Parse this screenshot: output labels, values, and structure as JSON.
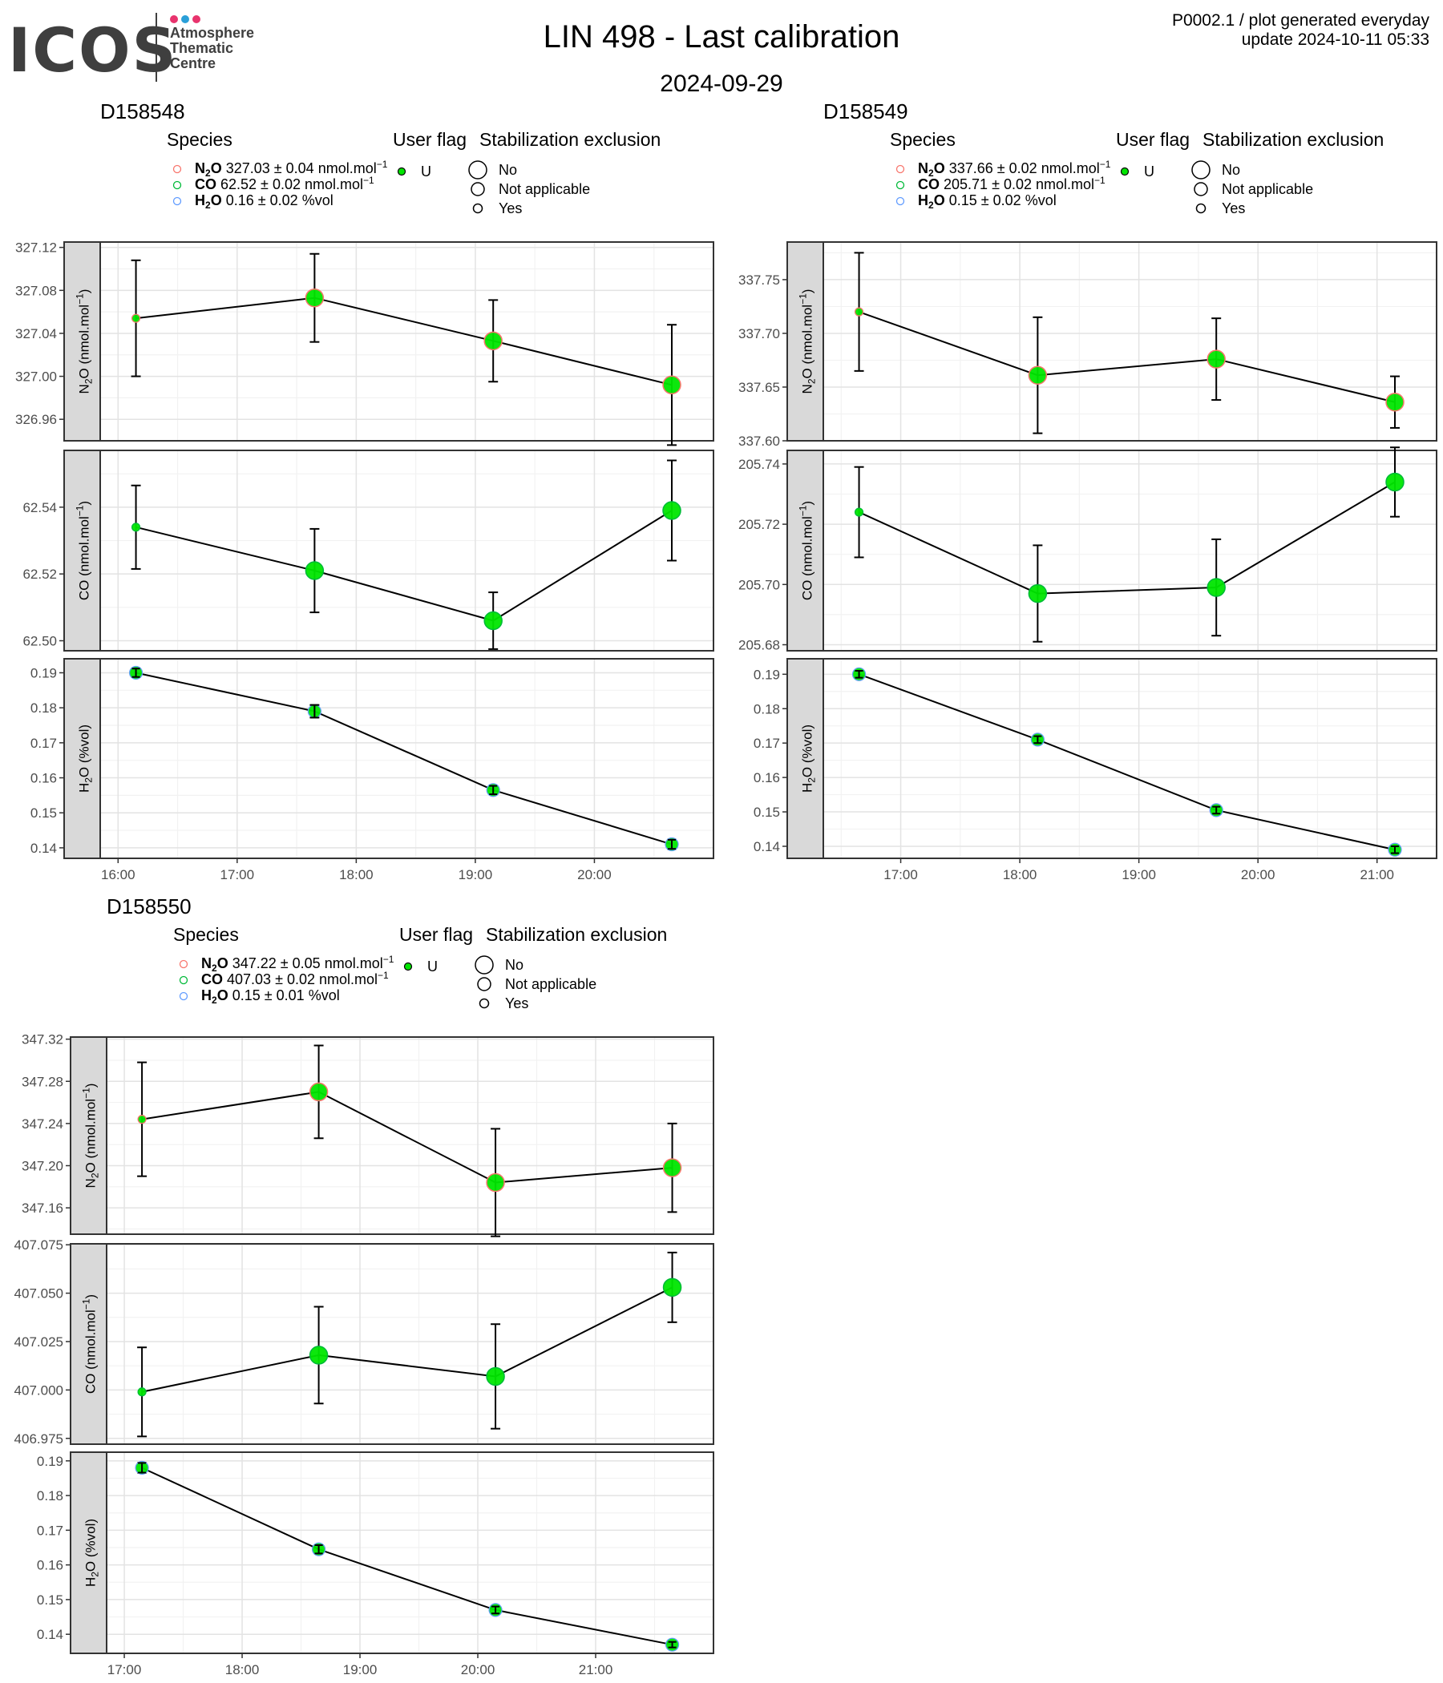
{
  "header": {
    "logo_text": "ICOS",
    "logo_lines": [
      "Atmosphere",
      "Thematic",
      "Centre"
    ],
    "logo_colors": [
      "#e8336d",
      "#2a9fd8",
      "#e8336d"
    ],
    "title": "LIN 498 - Last calibration",
    "date": "2024-09-29",
    "corner_line1": "P0002.1 / plot generated everyday",
    "corner_line2": "update  2024-10-11 05:33"
  },
  "legend_titles": {
    "species": "Species",
    "flag": "User flag",
    "stab": "Stabilization exclusion"
  },
  "legend_flag_value": "U",
  "legend_stab_values": [
    "No",
    "Not applicable",
    "Yes"
  ],
  "species_colors": {
    "N2O": "#f8766d",
    "CO": "#00ba38",
    "H2O": "#619cff"
  },
  "point_color": "#00e600",
  "chart_data": [
    {
      "type": "line",
      "title": "D158548",
      "legend": [
        {
          "name": "N2O",
          "value": "327.03",
          "sd": "0.04",
          "unit": "nmol.mol",
          "exp": "−1"
        },
        {
          "name": "CO",
          "value": "62.52",
          "sd": "0.02",
          "unit": "nmol.mol",
          "exp": "−1"
        },
        {
          "name": "H2O",
          "value": "0.16",
          "sd": "0.02",
          "unit": "%vol",
          "exp": ""
        }
      ],
      "x": [
        "16:09",
        "17:39",
        "19:09",
        "20:39"
      ],
      "x_ticks": [
        "16:00",
        "17:00",
        "18:00",
        "19:00",
        "20:00"
      ],
      "xlim": [
        "15:51",
        "21:00"
      ],
      "panels": [
        {
          "species": "N2O",
          "ylabel_main": "N",
          "ylabel_sub": "2",
          "ylabel_rest": "O (nmol.mol",
          "ylabel_exp": "−1",
          "ylabel_end": ")",
          "ylim": [
            326.94,
            327.125
          ],
          "ticks": [
            "327.12",
            "327.08",
            "327.04",
            "327.00",
            "326.96"
          ],
          "values": [
            327.054,
            327.073,
            327.033,
            326.992
          ],
          "errors": [
            0.054,
            0.041,
            0.038,
            0.056
          ],
          "sizes": [
            "small",
            "large",
            "large",
            "large"
          ]
        },
        {
          "species": "CO",
          "ylabel_main": "CO (nmol.mol",
          "ylabel_sub": "",
          "ylabel_rest": "",
          "ylabel_exp": "−1",
          "ylabel_end": ")",
          "ylim": [
            62.497,
            62.557
          ],
          "ticks": [
            "62.54",
            "62.52",
            "62.50"
          ],
          "values": [
            62.534,
            62.521,
            62.506,
            62.539
          ],
          "errors": [
            0.0125,
            0.0125,
            0.0085,
            0.015
          ],
          "sizes": [
            "small",
            "large",
            "large",
            "large"
          ]
        },
        {
          "species": "H2O",
          "ylabel_main": "H",
          "ylabel_sub": "2",
          "ylabel_rest": "O (%vol)",
          "ylabel_exp": "",
          "ylabel_end": "",
          "ylim": [
            0.137,
            0.194
          ],
          "ticks": [
            "0.19",
            "0.18",
            "0.17",
            "0.16",
            "0.15",
            "0.14"
          ],
          "values": [
            0.19,
            0.179,
            0.1565,
            0.141
          ],
          "errors": [
            0.0012,
            0.0018,
            0.0012,
            0.0013
          ],
          "sizes": [
            "small",
            "small",
            "small",
            "small"
          ]
        }
      ]
    },
    {
      "type": "line",
      "title": "D158549",
      "legend": [
        {
          "name": "N2O",
          "value": "337.66",
          "sd": "0.02",
          "unit": "nmol.mol",
          "exp": "−1"
        },
        {
          "name": "CO",
          "value": "205.71",
          "sd": "0.02",
          "unit": "nmol.mol",
          "exp": "−1"
        },
        {
          "name": "H2O",
          "value": "0.15",
          "sd": "0.02",
          "unit": "%vol",
          "exp": ""
        }
      ],
      "x": [
        "16:39",
        "18:09",
        "19:39",
        "21:09"
      ],
      "x_ticks": [
        "17:00",
        "18:00",
        "19:00",
        "20:00",
        "21:00"
      ],
      "xlim": [
        "16:21",
        "21:30"
      ],
      "panels": [
        {
          "species": "N2O",
          "ylabel_main": "N",
          "ylabel_sub": "2",
          "ylabel_rest": "O (nmol.mol",
          "ylabel_exp": "−1",
          "ylabel_end": ")",
          "ylim": [
            337.6,
            337.785
          ],
          "ticks": [
            "337.75",
            "337.70",
            "337.65",
            "337.60"
          ],
          "values": [
            337.72,
            337.661,
            337.676,
            337.636
          ],
          "errors": [
            0.055,
            0.054,
            0.038,
            0.024
          ],
          "sizes": [
            "small",
            "large",
            "large",
            "large"
          ]
        },
        {
          "species": "CO",
          "ylabel_main": "CO (nmol.mol",
          "ylabel_sub": "",
          "ylabel_rest": "",
          "ylabel_exp": "−1",
          "ylabel_end": ")",
          "ylim": [
            205.678,
            205.7445
          ],
          "ticks": [
            "205.74",
            "205.72",
            "205.70",
            "205.68"
          ],
          "values": [
            205.724,
            205.697,
            205.699,
            205.734
          ],
          "errors": [
            0.015,
            0.016,
            0.016,
            0.0115
          ],
          "sizes": [
            "small",
            "large",
            "large",
            "large"
          ]
        },
        {
          "species": "H2O",
          "ylabel_main": "H",
          "ylabel_sub": "2",
          "ylabel_rest": "O (%vol)",
          "ylabel_exp": "",
          "ylabel_end": "",
          "ylim": [
            0.1365,
            0.1945
          ],
          "ticks": [
            "0.19",
            "0.18",
            "0.17",
            "0.16",
            "0.15",
            "0.14"
          ],
          "values": [
            0.19,
            0.171,
            0.1505,
            0.139
          ],
          "errors": [
            0.001,
            0.001,
            0.001,
            0.001
          ],
          "sizes": [
            "small",
            "small",
            "small",
            "small"
          ]
        }
      ]
    },
    {
      "type": "line",
      "title": "D158550",
      "legend": [
        {
          "name": "N2O",
          "value": "347.22",
          "sd": "0.05",
          "unit": "nmol.mol",
          "exp": "−1"
        },
        {
          "name": "CO",
          "value": "407.03",
          "sd": "0.02",
          "unit": "nmol.mol",
          "exp": "−1"
        },
        {
          "name": "H2O",
          "value": "0.15",
          "sd": "0.01",
          "unit": "%vol",
          "exp": ""
        }
      ],
      "x": [
        "17:09",
        "18:39",
        "20:09",
        "21:39"
      ],
      "x_ticks": [
        "17:00",
        "18:00",
        "19:00",
        "20:00",
        "21:00"
      ],
      "xlim": [
        "16:51",
        "22:00"
      ],
      "panels": [
        {
          "species": "N2O",
          "ylabel_main": "N",
          "ylabel_sub": "2",
          "ylabel_rest": "O (nmol.mol",
          "ylabel_exp": "−1",
          "ylabel_end": ")",
          "ylim": [
            347.135,
            347.322
          ],
          "ticks": [
            "347.32",
            "347.28",
            "347.24",
            "347.20",
            "347.16"
          ],
          "values": [
            347.244,
            347.27,
            347.184,
            347.198
          ],
          "errors": [
            0.054,
            0.044,
            0.051,
            0.042
          ],
          "sizes": [
            "small",
            "large",
            "large",
            "large"
          ]
        },
        {
          "species": "CO",
          "ylabel_main": "CO (nmol.mol",
          "ylabel_sub": "",
          "ylabel_rest": "",
          "ylabel_exp": "−1",
          "ylabel_end": ")",
          "ylim": [
            406.972,
            407.0755
          ],
          "ticks": [
            "407.075",
            "407.050",
            "407.025",
            "407.000",
            "406.975"
          ],
          "values": [
            406.999,
            407.018,
            407.007,
            407.053
          ],
          "errors": [
            0.023,
            0.025,
            0.027,
            0.018
          ],
          "sizes": [
            "small",
            "large",
            "large",
            "large"
          ]
        },
        {
          "species": "H2O",
          "ylabel_main": "H",
          "ylabel_sub": "2",
          "ylabel_rest": "O (%vol)",
          "ylabel_exp": "",
          "ylabel_end": "",
          "ylim": [
            0.1345,
            0.1925
          ],
          "ticks": [
            "0.19",
            "0.18",
            "0.17",
            "0.16",
            "0.15",
            "0.14"
          ],
          "values": [
            0.188,
            0.1645,
            0.147,
            0.137
          ],
          "errors": [
            0.0014,
            0.0012,
            0.001,
            0.0008
          ],
          "sizes": [
            "small",
            "small",
            "small",
            "small"
          ]
        }
      ]
    }
  ]
}
